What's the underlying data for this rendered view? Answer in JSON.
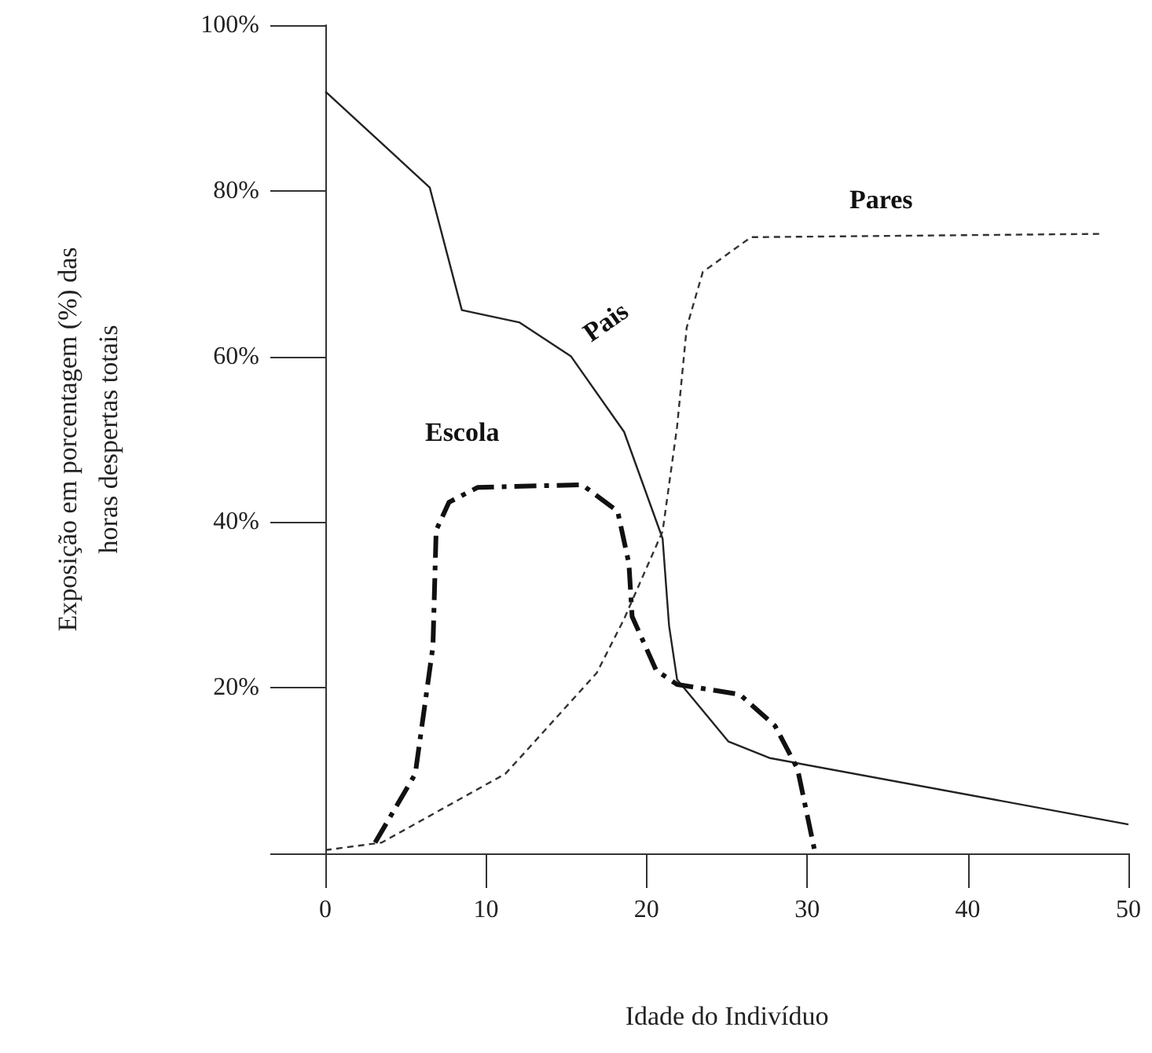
{
  "chart_data": {
    "type": "line",
    "xlabel": "Idade do Indivíduo",
    "ylabel": "Exposição em porcentagem (%) das\nhoras despertas totais",
    "xlim": [
      0,
      50
    ],
    "xticks": [
      0,
      10,
      20,
      30,
      40,
      50
    ],
    "ylim": [
      0,
      100
    ],
    "yticks": [
      {
        "value": 0,
        "label": null
      },
      {
        "value": 20,
        "label": "20%"
      },
      {
        "value": 40,
        "label": "40%"
      },
      {
        "value": 60,
        "label": "60%"
      },
      {
        "value": 80,
        "label": "80%"
      },
      {
        "value": 100,
        "label": "100%"
      }
    ],
    "grid": false,
    "legend": false,
    "marker": "none",
    "series": [
      {
        "name": "Pais",
        "color": "#222222",
        "line_style": "solid",
        "x": [
          0,
          6.5,
          8.5,
          12.1,
          15.3,
          18.6,
          21,
          21.4,
          21.9,
          25.1,
          27.7,
          50
        ],
        "values": [
          92,
          80.4,
          65.6,
          64.1,
          60,
          50.9,
          38,
          27.5,
          21,
          13.5,
          11.5,
          3.5
        ]
      },
      {
        "name": "Escola",
        "color": "#111111",
        "line_style": "dashed",
        "x": [
          3.1,
          5.6,
          6.7,
          6.9,
          7.7,
          9.5,
          16,
          18.2,
          18.9,
          19.1,
          20.6,
          21.9,
          25.8,
          28,
          29.4,
          30.5
        ],
        "values": [
          1.3,
          9.6,
          25,
          39,
          42.4,
          44.2,
          44.5,
          41.3,
          35,
          28.6,
          22.1,
          20.4,
          19.2,
          15.4,
          10.2,
          0
        ]
      },
      {
        "name": "Pares",
        "color": "#333333",
        "line_style": "dotted",
        "x": [
          0,
          3.5,
          11.2,
          12.1,
          16.9,
          18.6,
          21,
          21.9,
          22.5,
          23.5,
          26.5,
          48.3
        ],
        "values": [
          0.4,
          1.3,
          9.6,
          11.5,
          21.8,
          28.3,
          38.9,
          51.5,
          63.5,
          70.2,
          74.4,
          74.8
        ]
      }
    ]
  }
}
